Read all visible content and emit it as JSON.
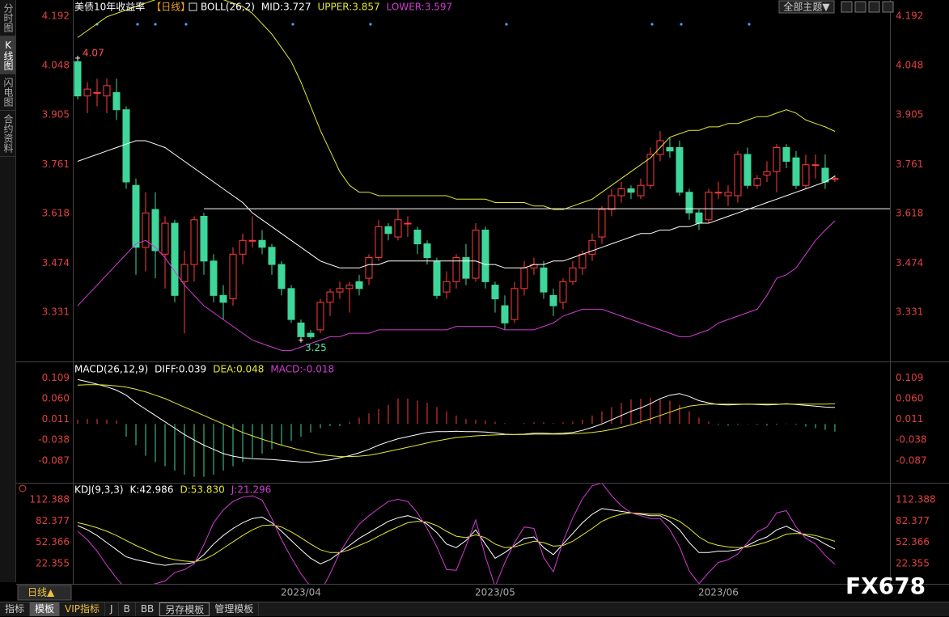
{
  "ui": {
    "sidebar_tabs": [
      "分时图",
      "K线图",
      "闪电图",
      "合约资料"
    ],
    "theme_button": "全部主题▼",
    "period_button": "日线▲",
    "bottom_tabs": [
      "指标",
      "模板",
      "VIP指标",
      "J",
      "B",
      "BB",
      "另存模板",
      "管理模板"
    ],
    "watermark": "FX678"
  },
  "chart_data": [
    {
      "type": "candlestick",
      "title": "美债10年收益率",
      "period": "【日线】",
      "indicator": "BOLL(26,2)",
      "up_color": "#ff3c3c",
      "down_color": "#3fd69a",
      "open": [
        4.06,
        3.96,
        3.97,
        3.96,
        3.97,
        3.92,
        3.7,
        3.52,
        3.63,
        3.5,
        3.59,
        3.42,
        3.47,
        3.61,
        3.48,
        3.38,
        3.37,
        3.5,
        3.54,
        3.54,
        3.52,
        3.47,
        3.4,
        3.3,
        3.27,
        3.28,
        3.36,
        3.39,
        3.4,
        3.42,
        3.43,
        3.49,
        3.58,
        3.55,
        3.59,
        3.57,
        3.53,
        3.48,
        3.39,
        3.42,
        3.49,
        3.43,
        3.57,
        3.41,
        3.35,
        3.31,
        3.4,
        3.46,
        3.46,
        3.38,
        3.36,
        3.42,
        3.46,
        3.5,
        3.55,
        3.63,
        3.67,
        3.69,
        3.67,
        3.7,
        3.79,
        3.81,
        3.81,
        3.68,
        3.62,
        3.6,
        3.68,
        3.67,
        3.67,
        3.79,
        3.7,
        3.73,
        3.74,
        3.81,
        3.78,
        3.7,
        3.76,
        3.75,
        3.72
      ],
      "high": [
        4.07,
        4.0,
        4.01,
        4.01,
        4.01,
        3.93,
        3.72,
        3.68,
        3.68,
        3.61,
        3.6,
        3.51,
        3.61,
        3.62,
        3.5,
        3.41,
        3.52,
        3.56,
        3.61,
        3.57,
        3.53,
        3.48,
        3.41,
        3.31,
        3.28,
        3.37,
        3.4,
        3.42,
        3.42,
        3.44,
        3.5,
        3.6,
        3.59,
        3.63,
        3.61,
        3.58,
        3.54,
        3.49,
        3.45,
        3.5,
        3.53,
        3.59,
        3.58,
        3.42,
        3.38,
        3.42,
        3.48,
        3.49,
        3.48,
        3.4,
        3.43,
        3.48,
        3.51,
        3.56,
        3.64,
        3.69,
        3.71,
        3.7,
        3.72,
        3.81,
        3.858,
        3.84,
        3.83,
        3.69,
        3.63,
        3.69,
        3.71,
        3.7,
        3.8,
        3.81,
        3.73,
        3.77,
        3.82,
        3.82,
        3.8,
        3.79,
        3.79,
        3.79,
        3.73
      ],
      "low": [
        3.95,
        3.91,
        3.93,
        3.91,
        3.89,
        3.69,
        3.44,
        3.45,
        3.43,
        3.4,
        3.36,
        3.27,
        3.42,
        3.44,
        3.36,
        3.31,
        3.35,
        3.47,
        3.52,
        3.5,
        3.44,
        3.38,
        3.3,
        3.25,
        3.253,
        3.27,
        3.32,
        3.37,
        3.33,
        3.38,
        3.41,
        3.48,
        3.54,
        3.54,
        3.55,
        3.5,
        3.47,
        3.37,
        3.37,
        3.4,
        3.41,
        3.42,
        3.4,
        3.33,
        3.28,
        3.3,
        3.38,
        3.44,
        3.37,
        3.32,
        3.34,
        3.41,
        3.44,
        3.48,
        3.53,
        3.61,
        3.65,
        3.66,
        3.66,
        3.69,
        3.77,
        3.78,
        3.67,
        3.6,
        3.57,
        3.59,
        3.66,
        3.64,
        3.65,
        3.69,
        3.69,
        3.71,
        3.68,
        3.75,
        3.69,
        3.69,
        3.72,
        3.69,
        3.71
      ],
      "close": [
        3.96,
        3.98,
        3.97,
        3.99,
        3.92,
        3.71,
        3.52,
        3.62,
        3.51,
        3.59,
        3.38,
        3.47,
        3.6,
        3.48,
        3.38,
        3.36,
        3.5,
        3.54,
        3.54,
        3.52,
        3.47,
        3.4,
        3.31,
        3.26,
        3.26,
        3.36,
        3.39,
        3.4,
        3.41,
        3.4,
        3.49,
        3.58,
        3.56,
        3.6,
        3.59,
        3.53,
        3.49,
        3.38,
        3.42,
        3.49,
        3.43,
        3.57,
        3.42,
        3.37,
        3.3,
        3.4,
        3.46,
        3.47,
        3.39,
        3.35,
        3.42,
        3.46,
        3.5,
        3.54,
        3.63,
        3.67,
        3.69,
        3.68,
        3.7,
        3.79,
        3.83,
        3.8,
        3.68,
        3.62,
        3.59,
        3.68,
        3.68,
        3.68,
        3.79,
        3.7,
        3.72,
        3.74,
        3.81,
        3.77,
        3.7,
        3.76,
        3.76,
        3.71,
        3.72
      ],
      "series": [
        {
          "name": "MID:3.727",
          "color": "#ffffff",
          "values": [
            3.77,
            3.78,
            3.79,
            3.8,
            3.81,
            3.82,
            3.83,
            3.83,
            3.82,
            3.81,
            3.79,
            3.77,
            3.75,
            3.73,
            3.71,
            3.69,
            3.67,
            3.65,
            3.62,
            3.6,
            3.58,
            3.56,
            3.54,
            3.52,
            3.5,
            3.48,
            3.47,
            3.46,
            3.46,
            3.46,
            3.47,
            3.47,
            3.48,
            3.48,
            3.48,
            3.48,
            3.48,
            3.48,
            3.48,
            3.48,
            3.48,
            3.48,
            3.47,
            3.47,
            3.46,
            3.46,
            3.46,
            3.47,
            3.47,
            3.48,
            3.48,
            3.49,
            3.5,
            3.51,
            3.52,
            3.53,
            3.54,
            3.55,
            3.56,
            3.56,
            3.57,
            3.57,
            3.58,
            3.58,
            3.59,
            3.59,
            3.6,
            3.61,
            3.62,
            3.63,
            3.64,
            3.65,
            3.66,
            3.67,
            3.68,
            3.69,
            3.7,
            3.71,
            3.727
          ]
        },
        {
          "name": "UPPER:3.857",
          "color": "#e6e632",
          "values": [
            4.13,
            4.15,
            4.17,
            4.19,
            4.2,
            4.21,
            4.22,
            4.23,
            4.24,
            4.25,
            4.25,
            4.26,
            4.26,
            4.26,
            4.25,
            4.24,
            4.23,
            4.22,
            4.2,
            4.17,
            4.14,
            4.1,
            4.06,
            4.0,
            3.93,
            3.86,
            3.8,
            3.74,
            3.7,
            3.68,
            3.68,
            3.67,
            3.67,
            3.67,
            3.67,
            3.67,
            3.67,
            3.67,
            3.67,
            3.66,
            3.66,
            3.66,
            3.66,
            3.65,
            3.65,
            3.65,
            3.65,
            3.64,
            3.64,
            3.63,
            3.63,
            3.64,
            3.65,
            3.66,
            3.68,
            3.7,
            3.72,
            3.74,
            3.76,
            3.78,
            3.81,
            3.84,
            3.85,
            3.86,
            3.86,
            3.87,
            3.87,
            3.88,
            3.88,
            3.89,
            3.9,
            3.9,
            3.91,
            3.92,
            3.91,
            3.89,
            3.88,
            3.87,
            3.857
          ]
        },
        {
          "name": "LOWER:3.597",
          "color": "#d23cd2",
          "values": [
            3.35,
            3.38,
            3.41,
            3.44,
            3.47,
            3.5,
            3.53,
            3.54,
            3.52,
            3.49,
            3.45,
            3.41,
            3.38,
            3.35,
            3.33,
            3.31,
            3.29,
            3.27,
            3.25,
            3.24,
            3.23,
            3.22,
            3.22,
            3.23,
            3.24,
            3.25,
            3.26,
            3.26,
            3.27,
            3.27,
            3.27,
            3.28,
            3.28,
            3.28,
            3.28,
            3.28,
            3.28,
            3.28,
            3.28,
            3.29,
            3.29,
            3.29,
            3.29,
            3.29,
            3.28,
            3.28,
            3.28,
            3.28,
            3.29,
            3.3,
            3.32,
            3.33,
            3.34,
            3.34,
            3.34,
            3.33,
            3.32,
            3.31,
            3.3,
            3.29,
            3.28,
            3.27,
            3.26,
            3.26,
            3.27,
            3.28,
            3.3,
            3.31,
            3.32,
            3.33,
            3.34,
            3.38,
            3.43,
            3.44,
            3.46,
            3.5,
            3.54,
            3.57,
            3.597
          ]
        }
      ],
      "hline": {
        "value": 3.632,
        "start": 13,
        "color": "#ffffff"
      },
      "xlim": [
        -0.5,
        83.67
      ],
      "xticks": [
        {
          "value": 23,
          "label": "2023/04"
        },
        {
          "value": 43,
          "label": "2023/05"
        },
        {
          "value": 66,
          "label": "2023/06"
        }
      ],
      "ylim": [
        3.188,
        4.239
      ],
      "yticks": [
        4.192,
        4.048,
        3.905,
        3.761,
        3.618,
        3.474,
        3.331
      ],
      "grid": false
    },
    {
      "type": "macd",
      "indicator": "MACD(26,12,9)",
      "series": [
        {
          "name": "DIFF:0.039",
          "color": "#ffffff",
          "values": [
            0.105,
            0.1,
            0.094,
            0.088,
            0.08,
            0.068,
            0.05,
            0.035,
            0.02,
            0.005,
            -0.01,
            -0.025,
            -0.038,
            -0.05,
            -0.06,
            -0.07,
            -0.076,
            -0.08,
            -0.082,
            -0.083,
            -0.084,
            -0.086,
            -0.088,
            -0.09,
            -0.09,
            -0.088,
            -0.085,
            -0.08,
            -0.075,
            -0.068,
            -0.06,
            -0.05,
            -0.042,
            -0.035,
            -0.03,
            -0.025,
            -0.02,
            -0.018,
            -0.018,
            -0.017,
            -0.018,
            -0.018,
            -0.019,
            -0.021,
            -0.024,
            -0.025,
            -0.024,
            -0.022,
            -0.022,
            -0.023,
            -0.022,
            -0.02,
            -0.015,
            -0.008,
            0.0,
            0.01,
            0.02,
            0.03,
            0.038,
            0.048,
            0.06,
            0.068,
            0.072,
            0.065,
            0.055,
            0.05,
            0.046,
            0.045,
            0.046,
            0.047,
            0.046,
            0.045,
            0.046,
            0.048,
            0.046,
            0.044,
            0.042,
            0.04,
            0.039
          ]
        },
        {
          "name": "DEA:0.048",
          "color": "#e6e632",
          "values": [
            0.092,
            0.093,
            0.093,
            0.092,
            0.09,
            0.087,
            0.082,
            0.076,
            0.068,
            0.06,
            0.05,
            0.04,
            0.03,
            0.02,
            0.01,
            0.0,
            -0.01,
            -0.02,
            -0.028,
            -0.036,
            -0.043,
            -0.05,
            -0.056,
            -0.062,
            -0.067,
            -0.072,
            -0.075,
            -0.077,
            -0.077,
            -0.076,
            -0.074,
            -0.07,
            -0.065,
            -0.06,
            -0.055,
            -0.05,
            -0.045,
            -0.04,
            -0.036,
            -0.032,
            -0.03,
            -0.028,
            -0.027,
            -0.026,
            -0.025,
            -0.025,
            -0.025,
            -0.024,
            -0.024,
            -0.024,
            -0.024,
            -0.023,
            -0.022,
            -0.02,
            -0.017,
            -0.013,
            -0.008,
            -0.002,
            0.005,
            0.012,
            0.02,
            0.028,
            0.036,
            0.042,
            0.045,
            0.047,
            0.047,
            0.047,
            0.047,
            0.047,
            0.047,
            0.047,
            0.047,
            0.047,
            0.047,
            0.047,
            0.047,
            0.047,
            0.048
          ]
        },
        {
          "name": "MACD:-0.018",
          "color": "#d23cd2",
          "type": "bar",
          "values": [
            0.01,
            0.012,
            0.012,
            0.01,
            0.008,
            -0.03,
            -0.05,
            -0.075,
            -0.09,
            -0.1,
            -0.11,
            -0.12,
            -0.125,
            -0.125,
            -0.12,
            -0.11,
            -0.1,
            -0.09,
            -0.08,
            -0.07,
            -0.06,
            -0.05,
            -0.04,
            -0.03,
            -0.02,
            -0.01,
            -0.005,
            -0.005,
            0.005,
            0.015,
            0.025,
            0.035,
            0.045,
            0.06,
            0.06,
            0.055,
            0.05,
            0.04,
            0.03,
            0.02,
            0.012,
            0.01,
            0.008,
            0.005,
            0.002,
            0.0,
            0.002,
            0.004,
            0.004,
            0.002,
            0.004,
            0.006,
            0.01,
            0.02,
            0.03,
            0.04,
            0.05,
            0.058,
            0.06,
            0.062,
            0.06,
            0.055,
            0.045,
            0.03,
            0.015,
            0.006,
            -0.002,
            -0.004,
            -0.002,
            -0.001,
            -0.002,
            -0.004,
            -0.002,
            0.001,
            -0.002,
            -0.006,
            -0.01,
            -0.014,
            -0.018
          ]
        }
      ],
      "ylim": [
        -0.139,
        0.144
      ],
      "yticks": [
        0.109,
        {
          "value": 0.06,
          "label": "0.060"
        },
        0.011,
        -0.038,
        -0.087
      ]
    },
    {
      "type": "line",
      "indicator": "KDJ(9,3,3)",
      "series": [
        {
          "name": "K:42.986",
          "color": "#ffffff",
          "values": [
            76,
            70,
            62,
            52,
            42,
            32,
            28,
            25,
            22,
            20,
            22,
            22,
            24,
            35,
            50,
            62,
            72,
            80,
            86,
            88,
            80,
            68,
            55,
            42,
            30,
            22,
            28,
            38,
            48,
            58,
            66,
            74,
            82,
            87,
            90,
            86,
            78,
            66,
            50,
            45,
            55,
            70,
            50,
            30,
            38,
            48,
            58,
            60,
            45,
            35,
            50,
            65,
            80,
            92,
            100,
            98,
            96,
            94,
            92,
            90,
            90,
            82,
            70,
            52,
            38,
            38,
            40,
            40,
            42,
            48,
            55,
            60,
            70,
            75,
            68,
            62,
            58,
            50,
            42.986
          ]
        },
        {
          "name": "D:53.830",
          "color": "#e6e632",
          "values": [
            80,
            77,
            73,
            68,
            62,
            55,
            48,
            42,
            36,
            31,
            28,
            26,
            25,
            28,
            35,
            44,
            53,
            62,
            70,
            76,
            77,
            74,
            67,
            59,
            50,
            42,
            38,
            38,
            42,
            48,
            54,
            61,
            68,
            74,
            80,
            82,
            81,
            76,
            68,
            61,
            59,
            63,
            59,
            50,
            45,
            46,
            50,
            54,
            52,
            47,
            48,
            54,
            63,
            72,
            82,
            88,
            92,
            94,
            93,
            92,
            92,
            88,
            82,
            72,
            60,
            52,
            48,
            46,
            45,
            46,
            49,
            53,
            58,
            64,
            65,
            64,
            62,
            58,
            53.83
          ]
        },
        {
          "name": "J:21.296",
          "color": "#d23cd2",
          "values": [
            68,
            56,
            40,
            20,
            2,
            -14,
            -12,
            -9,
            -6,
            -2,
            10,
            14,
            22,
            49,
            80,
            98,
            110,
            116,
            118,
            112,
            86,
            56,
            31,
            8,
            -10,
            -18,
            8,
            38,
            60,
            78,
            90,
            100,
            110,
            113,
            110,
            94,
            72,
            46,
            14,
            13,
            47,
            84,
            32,
            -10,
            24,
            52,
            74,
            72,
            31,
            11,
            54,
            87,
            114,
            132,
            136,
            118,
            104,
            94,
            90,
            86,
            86,
            70,
            46,
            12,
            -6,
            10,
            24,
            28,
            36,
            52,
            67,
            74,
            94,
            97,
            74,
            58,
            50,
            34,
            21.296
          ]
        }
      ],
      "ylim": [
        -6.1,
        135.2
      ],
      "yticks": [
        112.388,
        82.377,
        52.366,
        22.355
      ]
    }
  ]
}
